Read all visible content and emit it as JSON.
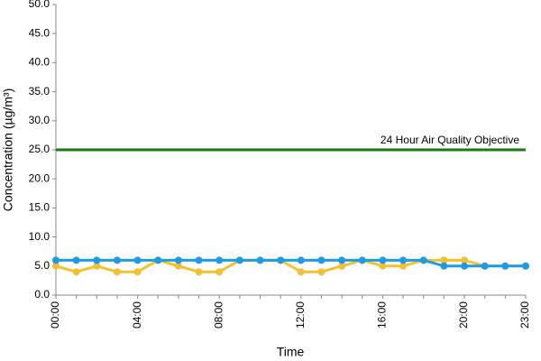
{
  "chart_data": {
    "type": "line",
    "x_label": "Time",
    "y_label": "Concentration (µg/m³)",
    "categories": [
      "00:00",
      null,
      null,
      null,
      "04:00",
      null,
      null,
      null,
      "08:00",
      null,
      null,
      null,
      "12:00",
      null,
      null,
      null,
      "16:00",
      null,
      null,
      null,
      "20:00",
      null,
      null,
      "23:00"
    ],
    "series": [
      {
        "color": "#f2c12e",
        "values": [
          5,
          4,
          5,
          4,
          4,
          6,
          5,
          4,
          4,
          6,
          6,
          6,
          4,
          4,
          5,
          6,
          5,
          5,
          6,
          6,
          6,
          5,
          5,
          5
        ]
      },
      {
        "color": "#1e9be8",
        "values": [
          6,
          6,
          6,
          6,
          6,
          6,
          6,
          6,
          6,
          6,
          6,
          6,
          6,
          6,
          6,
          6,
          6,
          6,
          6,
          5,
          5,
          5,
          5,
          5
        ]
      }
    ],
    "objective": {
      "value": 25,
      "label": "24 Hour Air Quality Objective",
      "color": "#1a7a1a"
    },
    "ylim": [
      0,
      50
    ],
    "yticks": [
      {
        "value": 0,
        "label": "0.0"
      },
      {
        "value": 5,
        "label": "5.0"
      },
      {
        "value": 10,
        "label": "10.0"
      },
      {
        "value": 15,
        "label": "15.0"
      },
      {
        "value": 20,
        "label": "20.0"
      },
      {
        "value": 25,
        "label": "25.0"
      },
      {
        "value": 30,
        "label": "30.0"
      },
      {
        "value": 35,
        "label": "35.0"
      },
      {
        "value": 40,
        "label": "40.0"
      },
      {
        "value": 45,
        "label": "45.0"
      },
      {
        "value": 50,
        "label": "50.0"
      }
    ]
  }
}
